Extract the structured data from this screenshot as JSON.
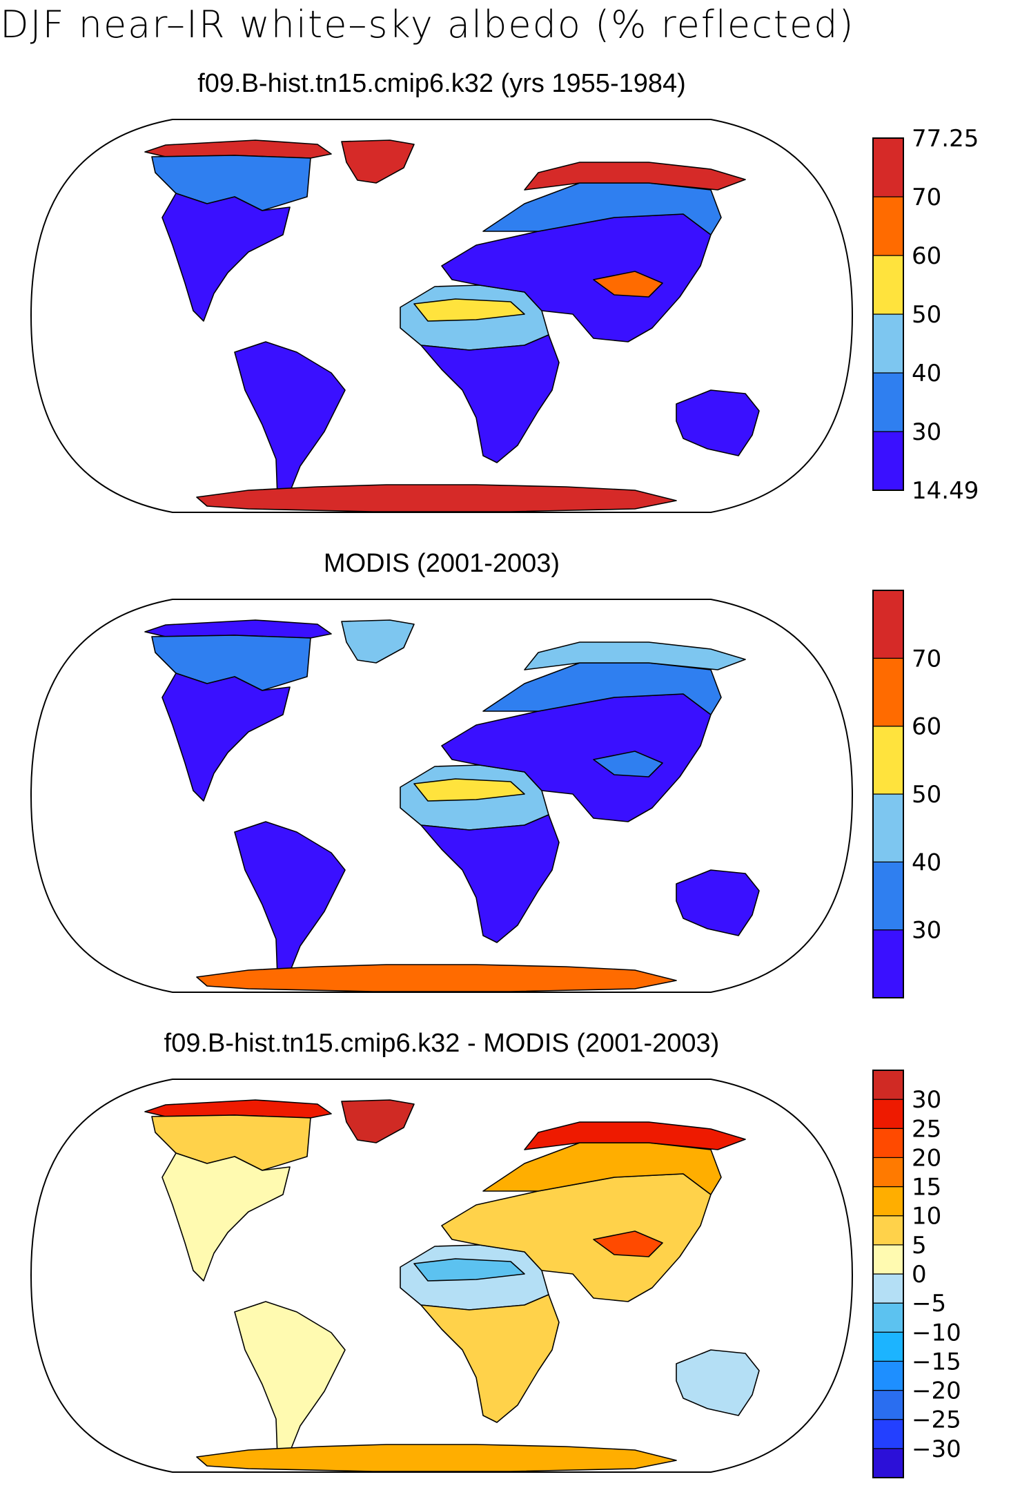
{
  "figure": {
    "title": "DJF near–IR white–sky albedo (% reflected)"
  },
  "panels": [
    {
      "title": "f09.B-hist.tn15.cmip6.k32 (yrs 1955-1984)",
      "colorbar": {
        "colors": [
          "#3a10ff",
          "#2f7ff0",
          "#7dc6f0",
          "#ffe33d",
          "#ff6b00",
          "#d62a28"
        ],
        "labels": [
          "14.49",
          "30",
          "40",
          "50",
          "60",
          "70",
          "77.25"
        ],
        "label_mode": "edges"
      },
      "fills": {
        "americas": "#3a10ff",
        "north_na": "#2f7ff0",
        "arctic_na": "#d62a28",
        "greenland": "#d62a28",
        "south_america": "#3a10ff",
        "africa_south": "#3a10ff",
        "africa_north": "#7dc6f0",
        "sahara_band": "#ffe33d",
        "eurasia": "#3a10ff",
        "siberia": "#2f7ff0",
        "siberia_north": "#d62a28",
        "tibet": "#ff6b00",
        "australia": "#3a10ff",
        "antarctica": "#d62a28"
      }
    },
    {
      "title": "MODIS (2001-2003)",
      "colorbar": {
        "colors": [
          "#3a10ff",
          "#2f7ff0",
          "#7dc6f0",
          "#ffe33d",
          "#ff6b00",
          "#d62a28"
        ],
        "labels": [
          "30",
          "40",
          "50",
          "60",
          "70"
        ],
        "label_mode": "interior"
      },
      "fills": {
        "americas": "#3a10ff",
        "north_na": "#2f7ff0",
        "arctic_na": "#3a10ff",
        "greenland": "#7dc6f0",
        "south_america": "#3a10ff",
        "africa_south": "#3a10ff",
        "africa_north": "#7dc6f0",
        "sahara_band": "#ffe33d",
        "eurasia": "#3a10ff",
        "siberia": "#2f7ff0",
        "siberia_north": "#7dc6f0",
        "tibet": "#2f7ff0",
        "australia": "#3a10ff",
        "antarctica": "#ff6b00"
      }
    },
    {
      "title": "f09.B-hist.tn15.cmip6.k32 - MODIS (2001-2003)",
      "colorbar": {
        "colors": [
          "#2c10d8",
          "#2340ff",
          "#2a6ef0",
          "#1e8fff",
          "#1cb4ff",
          "#5cc2f0",
          "#b4dff5",
          "#fffab0",
          "#ffd24a",
          "#ffae00",
          "#ff7a00",
          "#ff4a00",
          "#ee1a00",
          "#d02a24"
        ],
        "labels": [
          "−30",
          "−25",
          "−20",
          "−15",
          "−10",
          "−5",
          "0",
          "5",
          "10",
          "15",
          "20",
          "25",
          "30"
        ],
        "label_mode": "interior"
      },
      "fills": {
        "americas": "#fffab0",
        "north_na": "#ffd24a",
        "arctic_na": "#ee1a00",
        "greenland": "#d02a24",
        "south_america": "#fffab0",
        "africa_south": "#ffd24a",
        "africa_north": "#b4dff5",
        "sahara_band": "#5cc2f0",
        "eurasia": "#ffd24a",
        "siberia": "#ffae00",
        "siberia_north": "#ee1a00",
        "tibet": "#ff4a00",
        "australia": "#b4dff5",
        "antarctica": "#ffae00"
      }
    }
  ]
}
